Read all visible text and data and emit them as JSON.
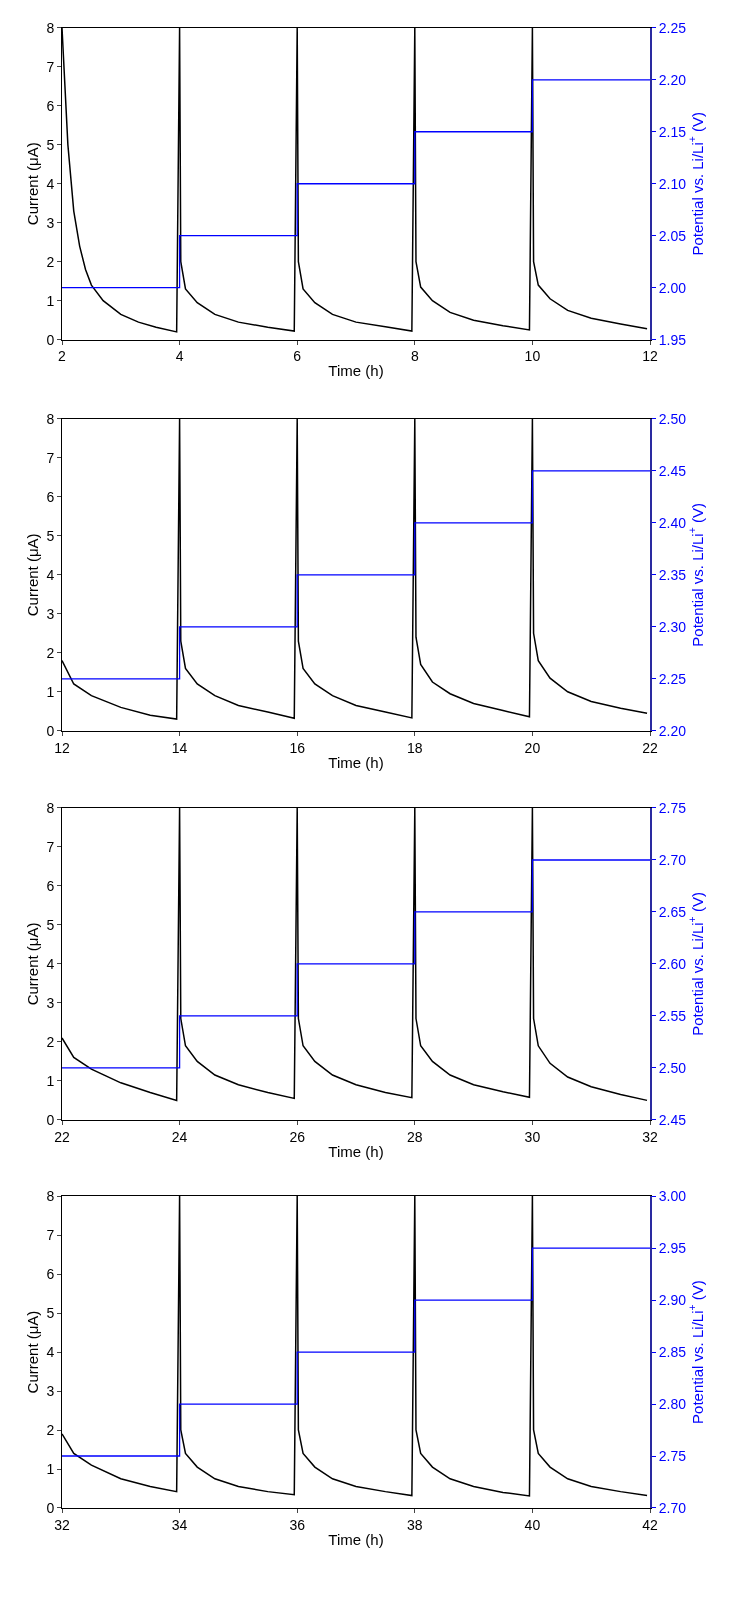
{
  "chart_data": [
    {
      "type": "line",
      "xlabel": "Time (h)",
      "ylabel": "Current (μA)",
      "y2label": "Potential vs. Li/Li$^{+}$ (V)",
      "xlim": [
        2,
        12
      ],
      "xticks": [
        2,
        4,
        6,
        8,
        10,
        12
      ],
      "ylim": [
        0,
        8
      ],
      "yticks": [
        0,
        1,
        2,
        3,
        4,
        5,
        6,
        7,
        8
      ],
      "y2lim": [
        1.95,
        2.25
      ],
      "y2ticks": [
        {
          "value": 1.95,
          "label": "1.95"
        },
        {
          "value": 2.0,
          "label": "2.00"
        },
        {
          "value": 2.05,
          "label": "2.05"
        },
        {
          "value": 2.1,
          "label": "2.10"
        },
        {
          "value": 2.15,
          "label": "2.15"
        },
        {
          "value": 2.2,
          "label": "2.20"
        },
        {
          "value": 2.25,
          "label": "2.25"
        }
      ],
      "series": [
        {
          "color": "#000000",
          "x": [
            2,
            2.05,
            2.1,
            2.2,
            2.3,
            2.4,
            2.5,
            2.7,
            3,
            3.3,
            3.6,
            3.95,
            4,
            4.02,
            4.1,
            4.3,
            4.6,
            5,
            5.5,
            5.95,
            6,
            6.02,
            6.1,
            6.3,
            6.6,
            7,
            7.5,
            7.95,
            8,
            8.02,
            8.1,
            8.3,
            8.6,
            9,
            9.5,
            9.95,
            10,
            10.02,
            10.1,
            10.3,
            10.6,
            11,
            11.5,
            11.95
          ],
          "values": [
            8,
            6.5,
            5,
            3.3,
            2.4,
            1.8,
            1.4,
            1.0,
            0.65,
            0.45,
            0.32,
            0.2,
            8,
            2.0,
            1.3,
            0.95,
            0.65,
            0.45,
            0.32,
            0.22,
            8,
            2.0,
            1.3,
            0.95,
            0.65,
            0.45,
            0.33,
            0.22,
            8,
            2.0,
            1.35,
            1.0,
            0.7,
            0.5,
            0.36,
            0.25,
            8,
            2.0,
            1.4,
            1.05,
            0.75,
            0.55,
            0.4,
            0.28
          ]
        },
        {
          "type": "step",
          "axis": "y2",
          "color": "#0000ff",
          "x": [
            2,
            4,
            6,
            8,
            10,
            12
          ],
          "values": [
            2.0,
            2.05,
            2.1,
            2.15,
            2.2,
            2.2
          ]
        }
      ]
    },
    {
      "type": "line",
      "xlabel": "Time (h)",
      "ylabel": "Current (μA)",
      "y2label": "Potential vs. Li/Li$^{+}$ (V)",
      "xlim": [
        12,
        22
      ],
      "xticks": [
        12,
        14,
        16,
        18,
        20,
        22
      ],
      "ylim": [
        0,
        8
      ],
      "yticks": [
        0,
        1,
        2,
        3,
        4,
        5,
        6,
        7,
        8
      ],
      "y2lim": [
        2.2,
        2.5
      ],
      "y2ticks": [
        {
          "value": 2.2,
          "label": "2.20"
        },
        {
          "value": 2.25,
          "label": "2.25"
        },
        {
          "value": 2.3,
          "label": "2.30"
        },
        {
          "value": 2.35,
          "label": "2.35"
        },
        {
          "value": 2.4,
          "label": "2.40"
        },
        {
          "value": 2.45,
          "label": "2.45"
        },
        {
          "value": 2.5,
          "label": "2.50"
        }
      ],
      "series": [
        {
          "color": "#000000",
          "x": [
            12,
            12.2,
            12.5,
            13,
            13.5,
            13.95,
            14,
            14.02,
            14.1,
            14.3,
            14.6,
            15,
            15.5,
            15.95,
            16,
            16.02,
            16.1,
            16.3,
            16.6,
            17,
            17.5,
            17.95,
            18,
            18.02,
            18.1,
            18.3,
            18.6,
            19,
            19.5,
            19.95,
            20,
            20.02,
            20.1,
            20.3,
            20.6,
            21,
            21.5,
            21.95
          ],
          "values": [
            1.8,
            1.2,
            0.9,
            0.6,
            0.4,
            0.3,
            8,
            2.3,
            1.6,
            1.2,
            0.9,
            0.65,
            0.48,
            0.32,
            8,
            2.3,
            1.6,
            1.2,
            0.9,
            0.65,
            0.48,
            0.33,
            8,
            2.4,
            1.7,
            1.25,
            0.95,
            0.7,
            0.52,
            0.36,
            8,
            2.5,
            1.8,
            1.35,
            1.0,
            0.75,
            0.58,
            0.45
          ]
        },
        {
          "type": "step",
          "axis": "y2",
          "color": "#0000ff",
          "x": [
            12,
            14,
            16,
            18,
            20,
            22
          ],
          "values": [
            2.25,
            2.3,
            2.35,
            2.4,
            2.45,
            2.45
          ]
        }
      ]
    },
    {
      "type": "line",
      "xlabel": "Time (h)",
      "ylabel": "Current (μA)",
      "y2label": "Potential vs. Li/Li$^{+}$ (V)",
      "xlim": [
        22,
        32
      ],
      "xticks": [
        22,
        24,
        26,
        28,
        30,
        32
      ],
      "ylim": [
        0,
        8
      ],
      "yticks": [
        0,
        1,
        2,
        3,
        4,
        5,
        6,
        7,
        8
      ],
      "y2lim": [
        2.45,
        2.75
      ],
      "y2ticks": [
        {
          "value": 2.45,
          "label": "2.45"
        },
        {
          "value": 2.5,
          "label": "2.50"
        },
        {
          "value": 2.55,
          "label": "2.55"
        },
        {
          "value": 2.6,
          "label": "2.60"
        },
        {
          "value": 2.65,
          "label": "2.65"
        },
        {
          "value": 2.7,
          "label": "2.70"
        },
        {
          "value": 2.75,
          "label": "2.75"
        }
      ],
      "series": [
        {
          "color": "#000000",
          "x": [
            22,
            22.2,
            22.5,
            23,
            23.5,
            23.95,
            24,
            24.02,
            24.1,
            24.3,
            24.6,
            25,
            25.5,
            25.95,
            26,
            26.02,
            26.1,
            26.3,
            26.6,
            27,
            27.5,
            27.95,
            28,
            28.02,
            28.1,
            28.3,
            28.6,
            29,
            29.5,
            29.95,
            30,
            30.02,
            30.1,
            30.3,
            30.6,
            31,
            31.5,
            31.95
          ],
          "values": [
            2.1,
            1.6,
            1.3,
            0.95,
            0.7,
            0.5,
            8,
            2.6,
            1.9,
            1.5,
            1.15,
            0.9,
            0.7,
            0.55,
            8,
            2.6,
            1.9,
            1.5,
            1.15,
            0.9,
            0.7,
            0.57,
            8,
            2.6,
            1.9,
            1.5,
            1.15,
            0.9,
            0.72,
            0.58,
            8,
            2.6,
            1.9,
            1.45,
            1.1,
            0.85,
            0.65,
            0.5
          ]
        },
        {
          "type": "step",
          "axis": "y2",
          "color": "#0000ff",
          "x": [
            22,
            24,
            26,
            28,
            30,
            32
          ],
          "values": [
            2.5,
            2.55,
            2.6,
            2.65,
            2.7,
            2.7
          ]
        }
      ]
    },
    {
      "type": "line",
      "xlabel": "Time (h)",
      "ylabel": "Current (μA)",
      "y2label": "Potential vs. Li/Li$^{+}$ (V)",
      "xlim": [
        32,
        42
      ],
      "xticks": [
        32,
        34,
        36,
        38,
        40,
        42
      ],
      "ylim": [
        0,
        8
      ],
      "yticks": [
        0,
        1,
        2,
        3,
        4,
        5,
        6,
        7,
        8
      ],
      "y2lim": [
        2.7,
        3.0
      ],
      "y2ticks": [
        {
          "value": 2.7,
          "label": "2.70"
        },
        {
          "value": 2.75,
          "label": "2.75"
        },
        {
          "value": 2.8,
          "label": "2.80"
        },
        {
          "value": 2.85,
          "label": "2.85"
        },
        {
          "value": 2.9,
          "label": "2.90"
        },
        {
          "value": 2.95,
          "label": "2.95"
        },
        {
          "value": 3.0,
          "label": "3.00"
        }
      ],
      "series": [
        {
          "color": "#000000",
          "x": [
            32,
            32.2,
            32.5,
            33,
            33.5,
            33.95,
            34,
            34.02,
            34.1,
            34.3,
            34.6,
            35,
            35.5,
            35.95,
            36,
            36.02,
            36.1,
            36.3,
            36.6,
            37,
            37.5,
            37.95,
            38,
            38.02,
            38.1,
            38.3,
            38.6,
            39,
            39.5,
            39.95,
            40,
            40.02,
            40.1,
            40.3,
            40.6,
            41,
            41.5,
            41.95
          ],
          "values": [
            1.9,
            1.4,
            1.1,
            0.75,
            0.55,
            0.42,
            8,
            2.0,
            1.4,
            1.05,
            0.75,
            0.55,
            0.42,
            0.34,
            8,
            2.0,
            1.4,
            1.05,
            0.75,
            0.55,
            0.42,
            0.32,
            8,
            2.0,
            1.4,
            1.05,
            0.75,
            0.55,
            0.4,
            0.31,
            8,
            2.0,
            1.4,
            1.05,
            0.75,
            0.55,
            0.42,
            0.32
          ]
        },
        {
          "type": "step",
          "axis": "y2",
          "color": "#0000ff",
          "x": [
            32,
            34,
            36,
            38,
            40,
            42
          ],
          "values": [
            2.75,
            2.8,
            2.85,
            2.9,
            2.95,
            2.95
          ]
        }
      ]
    }
  ]
}
